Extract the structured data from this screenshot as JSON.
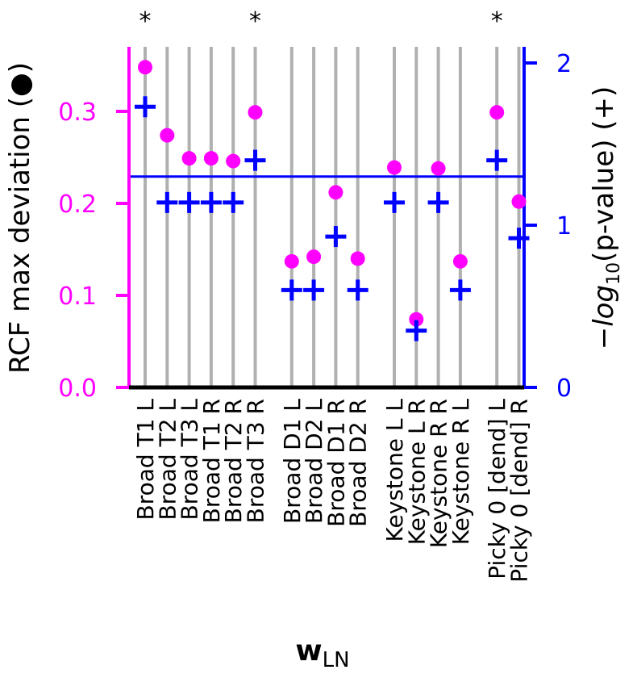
{
  "chart_data": {
    "type": "scatter",
    "xlabel_main": "w",
    "xlabel_sub": "LN",
    "ylabel_left": "RCF max deviation (●)",
    "ylabel_right_prefix": "−log",
    "ylabel_right_sub": "10",
    "ylabel_right_suffix": "(p-value) (+)",
    "ylim_left": [
      0,
      0.37
    ],
    "ylim_right": [
      0,
      2.1
    ],
    "yticks_left": [
      "0.0",
      "0.1",
      "0.2",
      "0.3"
    ],
    "yticks_right": [
      "0",
      "1",
      "2"
    ],
    "threshold_right": 1.3,
    "grid": "vertical",
    "colors": {
      "left": "#ff00ff",
      "right": "#0000ff",
      "grid": "#b0b0b0",
      "axis": "#000000"
    },
    "groups": [
      {
        "categories": [
          "Broad T1 L",
          "Broad T2 L",
          "Broad T3 L",
          "Broad T1 R",
          "Broad T2 R",
          "Broad T3 R"
        ],
        "deviation": [
          0.348,
          0.274,
          0.249,
          0.249,
          0.246,
          0.299
        ],
        "neg_log_p": [
          1.73,
          1.14,
          1.14,
          1.14,
          1.14,
          1.4
        ],
        "significant": [
          true,
          false,
          false,
          false,
          false,
          true
        ]
      },
      {
        "categories": [
          "Broad D1 L",
          "Broad D2 L",
          "Broad D1 R",
          "Broad D2 R"
        ],
        "deviation": [
          0.137,
          0.142,
          0.212,
          0.14
        ],
        "neg_log_p": [
          0.6,
          0.6,
          0.93,
          0.6
        ],
        "significant": [
          false,
          false,
          false,
          false
        ]
      },
      {
        "categories": [
          "Keystone L L",
          "Keystone L R",
          "Keystone R R",
          "Keystone R L"
        ],
        "deviation": [
          0.239,
          0.074,
          0.238,
          0.137
        ],
        "neg_log_p": [
          1.14,
          0.35,
          1.14,
          0.6
        ],
        "significant": [
          false,
          false,
          false,
          false
        ]
      },
      {
        "categories": [
          "Picky 0 [dend] L",
          "Picky 0 [dend] R"
        ],
        "deviation": [
          0.299,
          0.202
        ],
        "neg_log_p": [
          1.4,
          0.92
        ],
        "significant": [
          true,
          false
        ]
      }
    ],
    "significance_marker": "*"
  }
}
